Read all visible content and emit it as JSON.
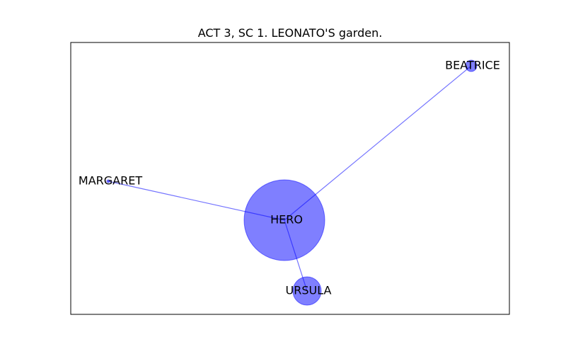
{
  "title": "ACT 3, SC 1. LEONATO'S garden.",
  "colors": {
    "node": "#0000ff",
    "edge": "#0000ff"
  },
  "nodes": [
    {
      "id": "HERO",
      "label": "HERO"
    },
    {
      "id": "URSULA",
      "label": "URSULA"
    },
    {
      "id": "MARGARET",
      "label": "MARGARET"
    },
    {
      "id": "BEATRICE",
      "label": "BEATRICE"
    }
  ],
  "edges": [
    {
      "source": "HERO",
      "target": "BEATRICE"
    },
    {
      "source": "HERO",
      "target": "MARGARET"
    },
    {
      "source": "HERO",
      "target": "URSULA"
    }
  ]
}
